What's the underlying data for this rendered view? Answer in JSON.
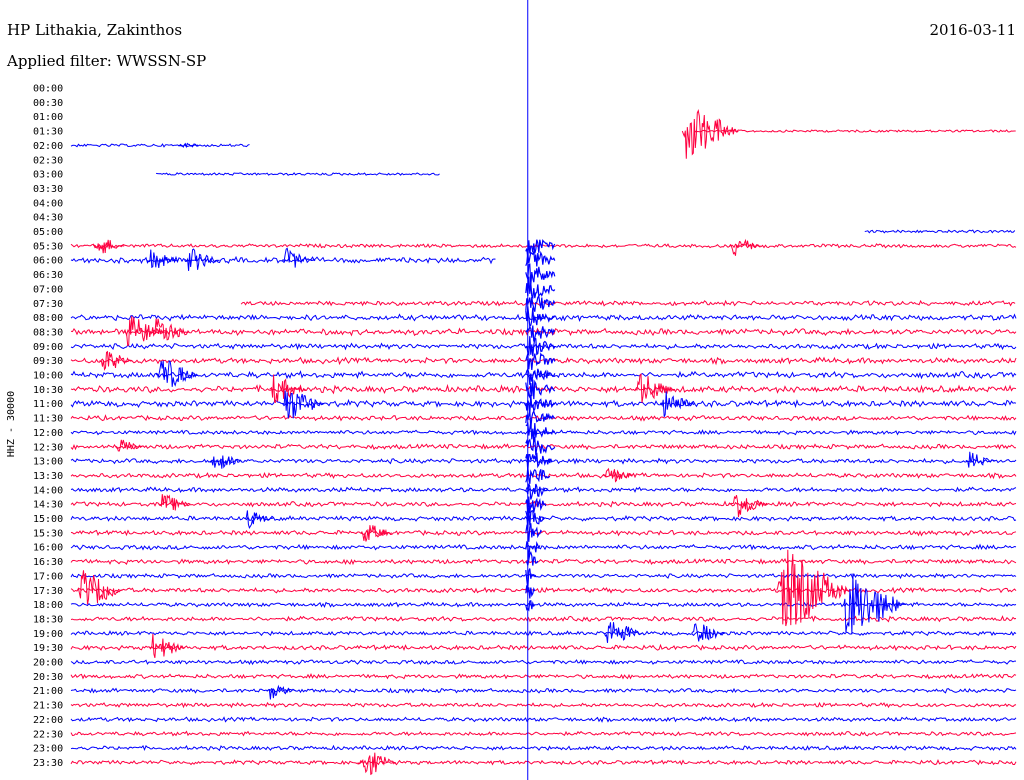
{
  "header": {
    "station": "HP Lithakia, Zakinthos",
    "filter": "Applied filter: WWSSN-SP",
    "date": "2016-03-11"
  },
  "chart_data": {
    "type": "line",
    "title": "HP Lithakia, Zakinthos",
    "subtitle": "Applied filter: WWSSN-SP",
    "date": "2016-03-11",
    "ylabel": "HHZ - 30000",
    "row_minutes": 30,
    "trace_colors": [
      "#0000ff",
      "#ff0040"
    ],
    "rows": [
      {
        "label": "00:00",
        "color": "blue",
        "segments": []
      },
      {
        "label": "00:30",
        "color": "red",
        "segments": []
      },
      {
        "label": "01:00",
        "color": "blue",
        "segments": []
      },
      {
        "label": "01:30",
        "color": "red",
        "segments": [
          [
            0.66,
            1.0
          ]
        ],
        "level": 0.05
      },
      {
        "label": "02:00",
        "color": "blue",
        "segments": [
          [
            0.0,
            0.19
          ]
        ],
        "level": 0.15
      },
      {
        "label": "02:30",
        "color": "red",
        "segments": []
      },
      {
        "label": "03:00",
        "color": "blue",
        "segments": [
          [
            0.09,
            0.39
          ]
        ],
        "level": 0.1
      },
      {
        "label": "03:30",
        "color": "red",
        "segments": []
      },
      {
        "label": "04:00",
        "color": "blue",
        "segments": []
      },
      {
        "label": "04:30",
        "color": "red",
        "segments": []
      },
      {
        "label": "05:00",
        "color": "blue",
        "segments": [
          [
            0.84,
            1.0
          ]
        ],
        "level": 0.15
      },
      {
        "label": "05:30",
        "color": "red",
        "segments": [
          [
            0.0,
            1.0
          ]
        ],
        "level": 0.3
      },
      {
        "label": "06:00",
        "color": "blue",
        "segments": [
          [
            0.0,
            0.45
          ]
        ],
        "level": 0.7
      },
      {
        "label": "06:30",
        "color": "red",
        "segments": []
      },
      {
        "label": "07:00",
        "color": "blue",
        "segments": []
      },
      {
        "label": "07:30",
        "color": "red",
        "segments": [
          [
            0.18,
            1.0
          ]
        ],
        "level": 0.5
      },
      {
        "label": "08:00",
        "color": "blue",
        "segments": [
          [
            0.0,
            1.0
          ]
        ],
        "level": 0.7
      },
      {
        "label": "08:30",
        "color": "red",
        "segments": [
          [
            0.0,
            1.0
          ]
        ],
        "level": 0.8
      },
      {
        "label": "09:00",
        "color": "blue",
        "segments": [
          [
            0.0,
            1.0
          ]
        ],
        "level": 0.6
      },
      {
        "label": "09:30",
        "color": "red",
        "segments": [
          [
            0.0,
            1.0
          ]
        ],
        "level": 0.7
      },
      {
        "label": "10:00",
        "color": "blue",
        "segments": [
          [
            0.0,
            1.0
          ]
        ],
        "level": 0.8
      },
      {
        "label": "10:30",
        "color": "red",
        "segments": [
          [
            0.0,
            1.0
          ]
        ],
        "level": 0.9
      },
      {
        "label": "11:00",
        "color": "blue",
        "segments": [
          [
            0.0,
            1.0
          ]
        ],
        "level": 0.8
      },
      {
        "label": "11:30",
        "color": "red",
        "segments": [
          [
            0.0,
            1.0
          ]
        ],
        "level": 0.5
      },
      {
        "label": "12:00",
        "color": "blue",
        "segments": [
          [
            0.0,
            1.0
          ]
        ],
        "level": 0.4
      },
      {
        "label": "12:30",
        "color": "red",
        "segments": [
          [
            0.0,
            1.0
          ]
        ],
        "level": 0.5
      },
      {
        "label": "13:00",
        "color": "blue",
        "segments": [
          [
            0.0,
            1.0
          ]
        ],
        "level": 0.5
      },
      {
        "label": "13:30",
        "color": "red",
        "segments": [
          [
            0.0,
            1.0
          ]
        ],
        "level": 0.5
      },
      {
        "label": "14:00",
        "color": "blue",
        "segments": [
          [
            0.0,
            1.0
          ]
        ],
        "level": 0.5
      },
      {
        "label": "14:30",
        "color": "red",
        "segments": [
          [
            0.0,
            1.0
          ]
        ],
        "level": 0.5
      },
      {
        "label": "15:00",
        "color": "blue",
        "segments": [
          [
            0.0,
            1.0
          ]
        ],
        "level": 0.5
      },
      {
        "label": "15:30",
        "color": "red",
        "segments": [
          [
            0.0,
            1.0
          ]
        ],
        "level": 0.5
      },
      {
        "label": "16:00",
        "color": "blue",
        "segments": [
          [
            0.0,
            1.0
          ]
        ],
        "level": 0.5
      },
      {
        "label": "16:30",
        "color": "red",
        "segments": [
          [
            0.0,
            1.0
          ]
        ],
        "level": 0.5
      },
      {
        "label": "17:00",
        "color": "blue",
        "segments": [
          [
            0.0,
            1.0
          ]
        ],
        "level": 0.4
      },
      {
        "label": "17:30",
        "color": "red",
        "segments": [
          [
            0.0,
            1.0
          ]
        ],
        "level": 0.5
      },
      {
        "label": "18:00",
        "color": "blue",
        "segments": [
          [
            0.0,
            1.0
          ]
        ],
        "level": 0.4
      },
      {
        "label": "18:30",
        "color": "red",
        "segments": [
          [
            0.0,
            1.0
          ]
        ],
        "level": 0.5
      },
      {
        "label": "19:00",
        "color": "blue",
        "segments": [
          [
            0.0,
            1.0
          ]
        ],
        "level": 0.4
      },
      {
        "label": "19:30",
        "color": "red",
        "segments": [
          [
            0.0,
            1.0
          ]
        ],
        "level": 0.5
      },
      {
        "label": "20:00",
        "color": "blue",
        "segments": [
          [
            0.0,
            1.0
          ]
        ],
        "level": 0.4
      },
      {
        "label": "20:30",
        "color": "red",
        "segments": [
          [
            0.0,
            1.0
          ]
        ],
        "level": 0.4
      },
      {
        "label": "21:00",
        "color": "blue",
        "segments": [
          [
            0.0,
            1.0
          ]
        ],
        "level": 0.4
      },
      {
        "label": "21:30",
        "color": "red",
        "segments": [
          [
            0.0,
            1.0
          ]
        ],
        "level": 0.4
      },
      {
        "label": "22:00",
        "color": "blue",
        "segments": [
          [
            0.0,
            1.0
          ]
        ],
        "level": 0.4
      },
      {
        "label": "22:30",
        "color": "red",
        "segments": [
          [
            0.0,
            1.0
          ]
        ],
        "level": 0.4
      },
      {
        "label": "23:00",
        "color": "blue",
        "segments": [
          [
            0.0,
            1.0
          ]
        ],
        "level": 0.4
      },
      {
        "label": "23:30",
        "color": "red",
        "segments": [
          [
            0.0,
            1.0
          ]
        ],
        "level": 0.4
      }
    ],
    "events": [
      {
        "time": "02:00",
        "offset_min": 3.5,
        "amp": 0.2
      },
      {
        "time": "01:30",
        "offset_min": 19.5,
        "amp": 2.2
      },
      {
        "time": "05:30",
        "offset_min": 0.8,
        "amp": 0.8
      },
      {
        "time": "05:30",
        "offset_min": 21.0,
        "amp": 0.8
      },
      {
        "time": "06:00",
        "offset_min": 6.8,
        "amp": 0.9
      },
      {
        "time": "06:00",
        "offset_min": 2.5,
        "amp": 0.8
      },
      {
        "time": "06:00",
        "offset_min": 3.7,
        "amp": 1.0
      },
      {
        "time": "08:30",
        "offset_min": 1.8,
        "amp": 1.3
      },
      {
        "time": "08:30",
        "offset_min": 2.7,
        "amp": 1.1
      },
      {
        "time": "09:30",
        "offset_min": 1.0,
        "amp": 0.9
      },
      {
        "time": "10:00",
        "offset_min": 2.8,
        "amp": 1.4
      },
      {
        "time": "10:30",
        "offset_min": 18.0,
        "amp": 1.3
      },
      {
        "time": "10:30",
        "offset_min": 6.4,
        "amp": 1.1
      },
      {
        "time": "11:00",
        "offset_min": 6.8,
        "amp": 1.4
      },
      {
        "time": "11:00",
        "offset_min": 18.8,
        "amp": 1.0
      },
      {
        "time": "12:30",
        "offset_min": 1.5,
        "amp": 0.6
      },
      {
        "time": "13:00",
        "offset_min": 4.5,
        "amp": 0.8
      },
      {
        "time": "13:00",
        "offset_min": 28.5,
        "amp": 0.7
      },
      {
        "time": "13:30",
        "offset_min": 17.0,
        "amp": 0.7
      },
      {
        "time": "14:30",
        "offset_min": 2.9,
        "amp": 0.8
      },
      {
        "time": "14:30",
        "offset_min": 21.0,
        "amp": 1.2
      },
      {
        "time": "15:00",
        "offset_min": 5.6,
        "amp": 0.7
      },
      {
        "time": "15:30",
        "offset_min": 9.3,
        "amp": 0.8
      },
      {
        "time": "17:30",
        "offset_min": 0.3,
        "amp": 1.6
      },
      {
        "time": "17:30",
        "offset_min": 22.5,
        "amp": 3.2
      },
      {
        "time": "18:00",
        "offset_min": 24.6,
        "amp": 2.6
      },
      {
        "time": "19:00",
        "offset_min": 17.0,
        "amp": 1.2
      },
      {
        "time": "19:00",
        "offset_min": 19.8,
        "amp": 0.9
      },
      {
        "time": "19:30",
        "offset_min": 2.6,
        "amp": 1.0
      },
      {
        "time": "21:00",
        "offset_min": 6.3,
        "amp": 0.7
      },
      {
        "time": "23:30",
        "offset_min": 9.2,
        "amp": 1.2
      }
    ],
    "main_event": {
      "time_start": "05:30",
      "time_end": "18:00",
      "offset_min": 14.5
    }
  }
}
